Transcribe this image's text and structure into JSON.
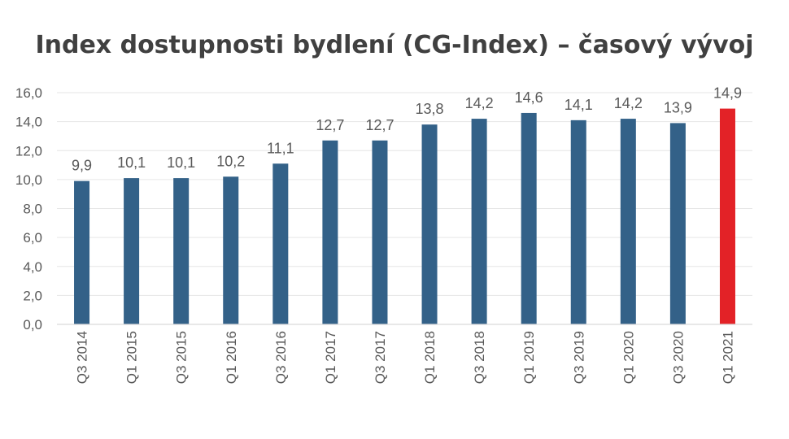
{
  "chart_data": {
    "type": "bar",
    "title": "Index dostupnosti bydlení (CG-Index) – časový vývoj",
    "xlabel": "",
    "ylabel": "",
    "categories": [
      "Q3 2014",
      "Q1 2015",
      "Q3 2015",
      "Q1 2016",
      "Q3 2016",
      "Q1 2017",
      "Q3 2017",
      "Q1 2018",
      "Q3 2018",
      "Q1 2019",
      "Q3 2019",
      "Q1 2020",
      "Q3 2020",
      "Q1 2021"
    ],
    "values": [
      9.9,
      10.1,
      10.1,
      10.2,
      11.1,
      12.7,
      12.7,
      13.8,
      14.2,
      14.6,
      14.1,
      14.2,
      13.9,
      14.9
    ],
    "value_labels": [
      "9,9",
      "10,1",
      "10,1",
      "10,2",
      "11,1",
      "12,7",
      "12,7",
      "13,8",
      "14,2",
      "14,6",
      "14,1",
      "14,2",
      "13,9",
      "14,9"
    ],
    "ylim": [
      0,
      16
    ],
    "yticks": [
      "0,0",
      "2,0",
      "4,0",
      "6,0",
      "8,0",
      "10,0",
      "12,0",
      "14,0",
      "16,0"
    ],
    "grid": true,
    "legend": "none",
    "colors": {
      "default": "#336188",
      "highlight": "#e32227",
      "grid": "#e6e6e6",
      "axis": "#d9d9d9"
    },
    "highlight_index": 13
  }
}
